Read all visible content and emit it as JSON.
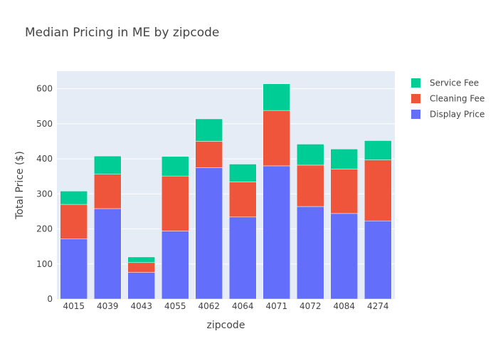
{
  "chart_data": {
    "type": "bar",
    "title": "Median Pricing in ME by zipcode",
    "xlabel": "zipcode",
    "ylabel": "Total Price ($)",
    "ylim": [
      0,
      650
    ],
    "yticks": [
      0,
      100,
      200,
      300,
      400,
      500,
      600
    ],
    "categories": [
      "4015",
      "4039",
      "4043",
      "4055",
      "4062",
      "4064",
      "4071",
      "4072",
      "4084",
      "4274"
    ],
    "stacked": true,
    "series": [
      {
        "name": "Display Price",
        "color": "#636efa",
        "values": [
          172,
          258,
          76,
          194,
          375,
          234,
          380,
          264,
          244,
          223
        ]
      },
      {
        "name": "Cleaning Fee",
        "color": "#ef553b",
        "values": [
          98,
          98,
          28,
          157,
          75,
          100,
          158,
          118,
          127,
          174
        ]
      },
      {
        "name": "Service Fee",
        "color": "#00cc96",
        "values": [
          38,
          52,
          16,
          56,
          64,
          51,
          76,
          60,
          57,
          55
        ]
      }
    ],
    "legend_order": [
      "Service Fee",
      "Cleaning Fee",
      "Display Price"
    ],
    "legend_position": "top-right",
    "grid": true
  }
}
